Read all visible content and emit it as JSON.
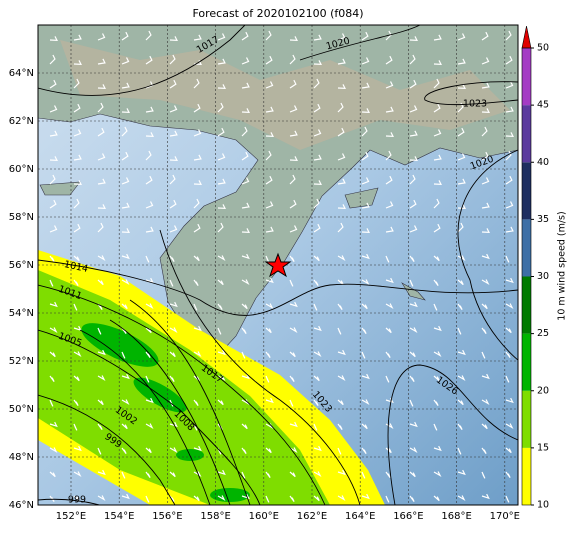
{
  "title": "Forecast of 2020102100 (f084)",
  "lon_labels": [
    "152°E",
    "154°E",
    "156°E",
    "158°E",
    "160°E",
    "162°E",
    "164°E",
    "166°E",
    "168°E",
    "170°E"
  ],
  "lat_labels": [
    "64°N",
    "62°N",
    "60°N",
    "58°N",
    "56°N",
    "54°N",
    "52°N",
    "50°N",
    "48°N",
    "46°N"
  ],
  "isobar_labels": [
    "1017",
    "1020",
    "1023",
    "1020",
    "1014",
    "1011",
    "1005",
    "1017",
    "1023",
    "1026",
    "1002",
    "1008",
    "999",
    "999"
  ],
  "colorbar": {
    "label": "10 m wind speed (m/s)",
    "range": [
      10,
      50
    ],
    "ticks": [
      10,
      15,
      20,
      25,
      30,
      35,
      40,
      45,
      50
    ],
    "colors": [
      "#ffff00",
      "#7fdd00",
      "#00b400",
      "#007a00",
      "#3d6fa6",
      "#1e2e60",
      "#5b3a9e",
      "#a43cc4"
    ],
    "extend_color": "#e00000"
  }
}
